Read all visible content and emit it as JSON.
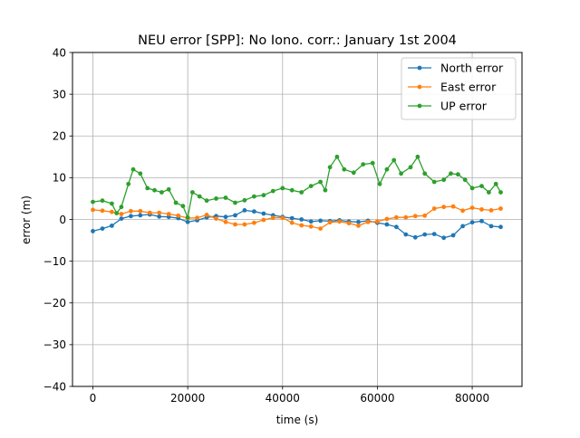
{
  "chart_data": {
    "type": "line",
    "title": "NEU error [SPP]: No Iono. corr.: January 1st 2004",
    "xlabel": "time (s)",
    "ylabel": "error (m)",
    "xlim": [
      -4300,
      90500
    ],
    "ylim": [
      -40,
      40
    ],
    "xticks": [
      0,
      20000,
      40000,
      60000,
      80000
    ],
    "yticks": [
      -40,
      -30,
      -20,
      -10,
      0,
      10,
      20,
      30,
      40
    ],
    "grid": true,
    "legend_position": "top-right",
    "marker": "circle",
    "series": [
      {
        "name": "North error",
        "color": "#1f77b4",
        "points": [
          [
            0,
            -2.8
          ],
          [
            2000,
            -2.2
          ],
          [
            4000,
            -1.5
          ],
          [
            6000,
            0.2
          ],
          [
            8000,
            0.8
          ],
          [
            10000,
            1.0
          ],
          [
            12000,
            1.2
          ],
          [
            14000,
            0.7
          ],
          [
            16000,
            0.6
          ],
          [
            18000,
            0.3
          ],
          [
            20000,
            -0.6
          ],
          [
            22000,
            -0.2
          ],
          [
            24000,
            0.5
          ],
          [
            26000,
            0.8
          ],
          [
            28000,
            0.6
          ],
          [
            30000,
            1.0
          ],
          [
            32000,
            2.2
          ],
          [
            34000,
            1.9
          ],
          [
            36000,
            1.4
          ],
          [
            38000,
            1.0
          ],
          [
            40000,
            0.6
          ],
          [
            42000,
            0.3
          ],
          [
            44000,
            0.0
          ],
          [
            46000,
            -0.5
          ],
          [
            48000,
            -0.3
          ],
          [
            50000,
            -0.4
          ],
          [
            52000,
            -0.2
          ],
          [
            54000,
            -0.5
          ],
          [
            56000,
            -0.6
          ],
          [
            58000,
            -0.3
          ],
          [
            60000,
            -0.8
          ],
          [
            62000,
            -1.2
          ],
          [
            64000,
            -1.8
          ],
          [
            66000,
            -3.6
          ],
          [
            68000,
            -4.3
          ],
          [
            70000,
            -3.6
          ],
          [
            72000,
            -3.5
          ],
          [
            74000,
            -4.4
          ],
          [
            76000,
            -3.8
          ],
          [
            78000,
            -1.6
          ],
          [
            80000,
            -0.7
          ],
          [
            82000,
            -0.4
          ],
          [
            84000,
            -1.6
          ],
          [
            86000,
            -1.8
          ]
        ]
      },
      {
        "name": "East error",
        "color": "#ff7f0e",
        "points": [
          [
            0,
            2.3
          ],
          [
            2000,
            2.1
          ],
          [
            4000,
            1.8
          ],
          [
            6000,
            1.3
          ],
          [
            8000,
            2.0
          ],
          [
            10000,
            2.0
          ],
          [
            12000,
            1.6
          ],
          [
            14000,
            1.6
          ],
          [
            16000,
            1.3
          ],
          [
            18000,
            0.9
          ],
          [
            20000,
            0.3
          ],
          [
            22000,
            0.4
          ],
          [
            24000,
            1.1
          ],
          [
            26000,
            0.2
          ],
          [
            28000,
            -0.6
          ],
          [
            30000,
            -1.2
          ],
          [
            32000,
            -1.2
          ],
          [
            34000,
            -0.8
          ],
          [
            36000,
            -0.1
          ],
          [
            38000,
            0.4
          ],
          [
            40000,
            0.4
          ],
          [
            42000,
            -0.8
          ],
          [
            44000,
            -1.4
          ],
          [
            46000,
            -1.7
          ],
          [
            48000,
            -2.2
          ],
          [
            50000,
            -0.7
          ],
          [
            52000,
            -0.5
          ],
          [
            54000,
            -0.9
          ],
          [
            56000,
            -1.5
          ],
          [
            58000,
            -0.6
          ],
          [
            60000,
            -0.5
          ],
          [
            62000,
            0.1
          ],
          [
            64000,
            0.5
          ],
          [
            66000,
            0.5
          ],
          [
            68000,
            0.8
          ],
          [
            70000,
            0.9
          ],
          [
            72000,
            2.6
          ],
          [
            74000,
            3.0
          ],
          [
            76000,
            3.1
          ],
          [
            78000,
            2.1
          ],
          [
            80000,
            2.8
          ],
          [
            82000,
            2.4
          ],
          [
            84000,
            2.2
          ],
          [
            86000,
            2.6
          ]
        ]
      },
      {
        "name": "UP error",
        "color": "#2ca02c",
        "points": [
          [
            0,
            4.2
          ],
          [
            2000,
            4.5
          ],
          [
            4000,
            3.8
          ],
          [
            5000,
            1.5
          ],
          [
            6000,
            3.0
          ],
          [
            7500,
            8.5
          ],
          [
            8500,
            12.0
          ],
          [
            10000,
            11.0
          ],
          [
            11500,
            7.5
          ],
          [
            13000,
            7.0
          ],
          [
            14500,
            6.5
          ],
          [
            16000,
            7.2
          ],
          [
            17500,
            4.0
          ],
          [
            19000,
            3.2
          ],
          [
            20000,
            0.5
          ],
          [
            21000,
            6.5
          ],
          [
            22500,
            5.5
          ],
          [
            24000,
            4.5
          ],
          [
            26000,
            5.0
          ],
          [
            28000,
            5.2
          ],
          [
            30000,
            4.0
          ],
          [
            32000,
            4.6
          ],
          [
            34000,
            5.5
          ],
          [
            36000,
            5.8
          ],
          [
            38000,
            6.8
          ],
          [
            40000,
            7.5
          ],
          [
            42000,
            7.0
          ],
          [
            44000,
            6.5
          ],
          [
            46000,
            8.0
          ],
          [
            48000,
            9.0
          ],
          [
            49000,
            7.0
          ],
          [
            50000,
            12.5
          ],
          [
            51500,
            15.0
          ],
          [
            53000,
            12.0
          ],
          [
            55000,
            11.2
          ],
          [
            57000,
            13.2
          ],
          [
            59000,
            13.5
          ],
          [
            60500,
            8.5
          ],
          [
            62000,
            12.0
          ],
          [
            63500,
            14.2
          ],
          [
            65000,
            11.0
          ],
          [
            67000,
            12.5
          ],
          [
            68500,
            15.0
          ],
          [
            70000,
            11.0
          ],
          [
            72000,
            9.0
          ],
          [
            74000,
            9.5
          ],
          [
            75500,
            11.0
          ],
          [
            77000,
            10.8
          ],
          [
            78500,
            9.5
          ],
          [
            80000,
            7.5
          ],
          [
            82000,
            8.0
          ],
          [
            83500,
            6.5
          ],
          [
            85000,
            8.5
          ],
          [
            86000,
            6.5
          ]
        ]
      }
    ]
  }
}
